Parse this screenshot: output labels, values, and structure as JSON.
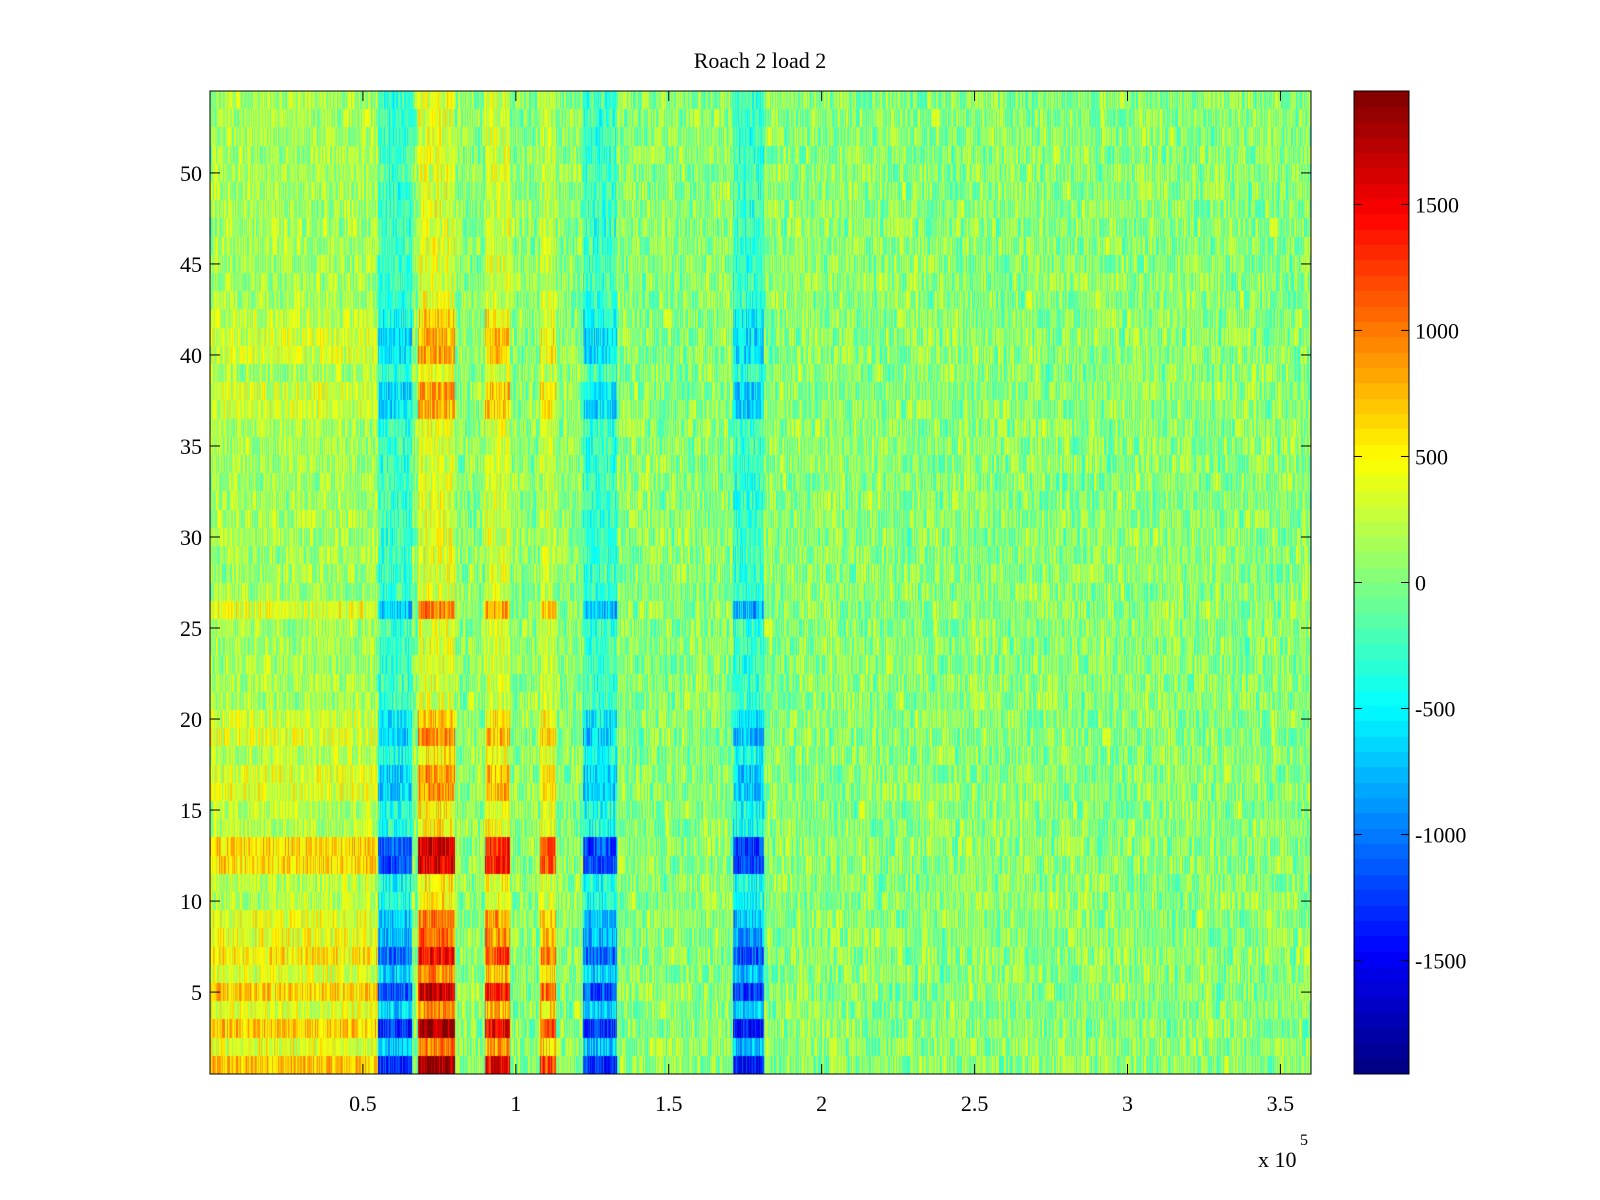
{
  "chart_data": {
    "type": "heatmap",
    "title": "Roach 2 load 2",
    "xlabel": "",
    "ylabel": "",
    "x_range": [
      0,
      360000
    ],
    "y_range": [
      0.5,
      54.5
    ],
    "x_scale_exponent_label": "x 10",
    "x_scale_exponent": "5",
    "x_ticks": [
      0.5,
      1,
      1.5,
      2,
      2.5,
      3,
      3.5
    ],
    "x_tick_labels": [
      "0.5",
      "1",
      "1.5",
      "2",
      "2.5",
      "3",
      "3.5"
    ],
    "y_ticks": [
      5,
      10,
      15,
      20,
      25,
      30,
      35,
      40,
      45,
      50
    ],
    "y_tick_labels": [
      "5",
      "10",
      "15",
      "20",
      "25",
      "30",
      "35",
      "40",
      "45",
      "50"
    ],
    "colorbar": {
      "colormap": "jet",
      "clim": [
        -1950,
        1950
      ],
      "ticks": [
        -1500,
        -1000,
        -500,
        0,
        500,
        1000,
        1500
      ],
      "tick_labels": [
        "-1500",
        "-1000",
        "-500",
        "0",
        "500",
        "1000",
        "1500"
      ]
    },
    "rows": 54,
    "columns_band_structure": [
      {
        "x_range": [
          0,
          55000
        ],
        "value": 700,
        "note": "warm band, strongest in rows 1-13"
      },
      {
        "x_range": [
          55000,
          66000
        ],
        "value": -1300,
        "note": "blue band"
      },
      {
        "x_range": [
          68000,
          80000
        ],
        "value": 1800,
        "note": "dark red band"
      },
      {
        "x_range": [
          90000,
          98000
        ],
        "value": 1500,
        "note": "red band"
      },
      {
        "x_range": [
          108000,
          113000
        ],
        "value": 1200,
        "note": "red band"
      },
      {
        "x_range": [
          122000,
          133000
        ],
        "value": -1300,
        "note": "blue band"
      },
      {
        "x_range": [
          171000,
          181000
        ],
        "value": -1400,
        "note": "blue band"
      },
      {
        "x_range": [
          181000,
          360000
        ],
        "value": 0,
        "note": "noise around zero"
      }
    ],
    "row_profile": {
      "1": 1.0,
      "2": 0.55,
      "3": 1.0,
      "4": 0.5,
      "5": 0.9,
      "6": 0.5,
      "7": 0.8,
      "8": 0.6,
      "9": 0.55,
      "10": 0.3,
      "11": 0.3,
      "12": 0.9,
      "13": 0.9,
      "14": 0.3,
      "15": 0.3,
      "16": 0.5,
      "17": 0.5,
      "18": 0.3,
      "19": 0.5,
      "20": 0.4,
      "26": 0.55,
      "37": 0.45,
      "38": 0.45,
      "40": 0.45,
      "41": 0.45,
      "42": 0.35
    }
  },
  "colors": {
    "background": "#ffffff",
    "axis": "#000000",
    "plot_bg": "#80ff80"
  }
}
